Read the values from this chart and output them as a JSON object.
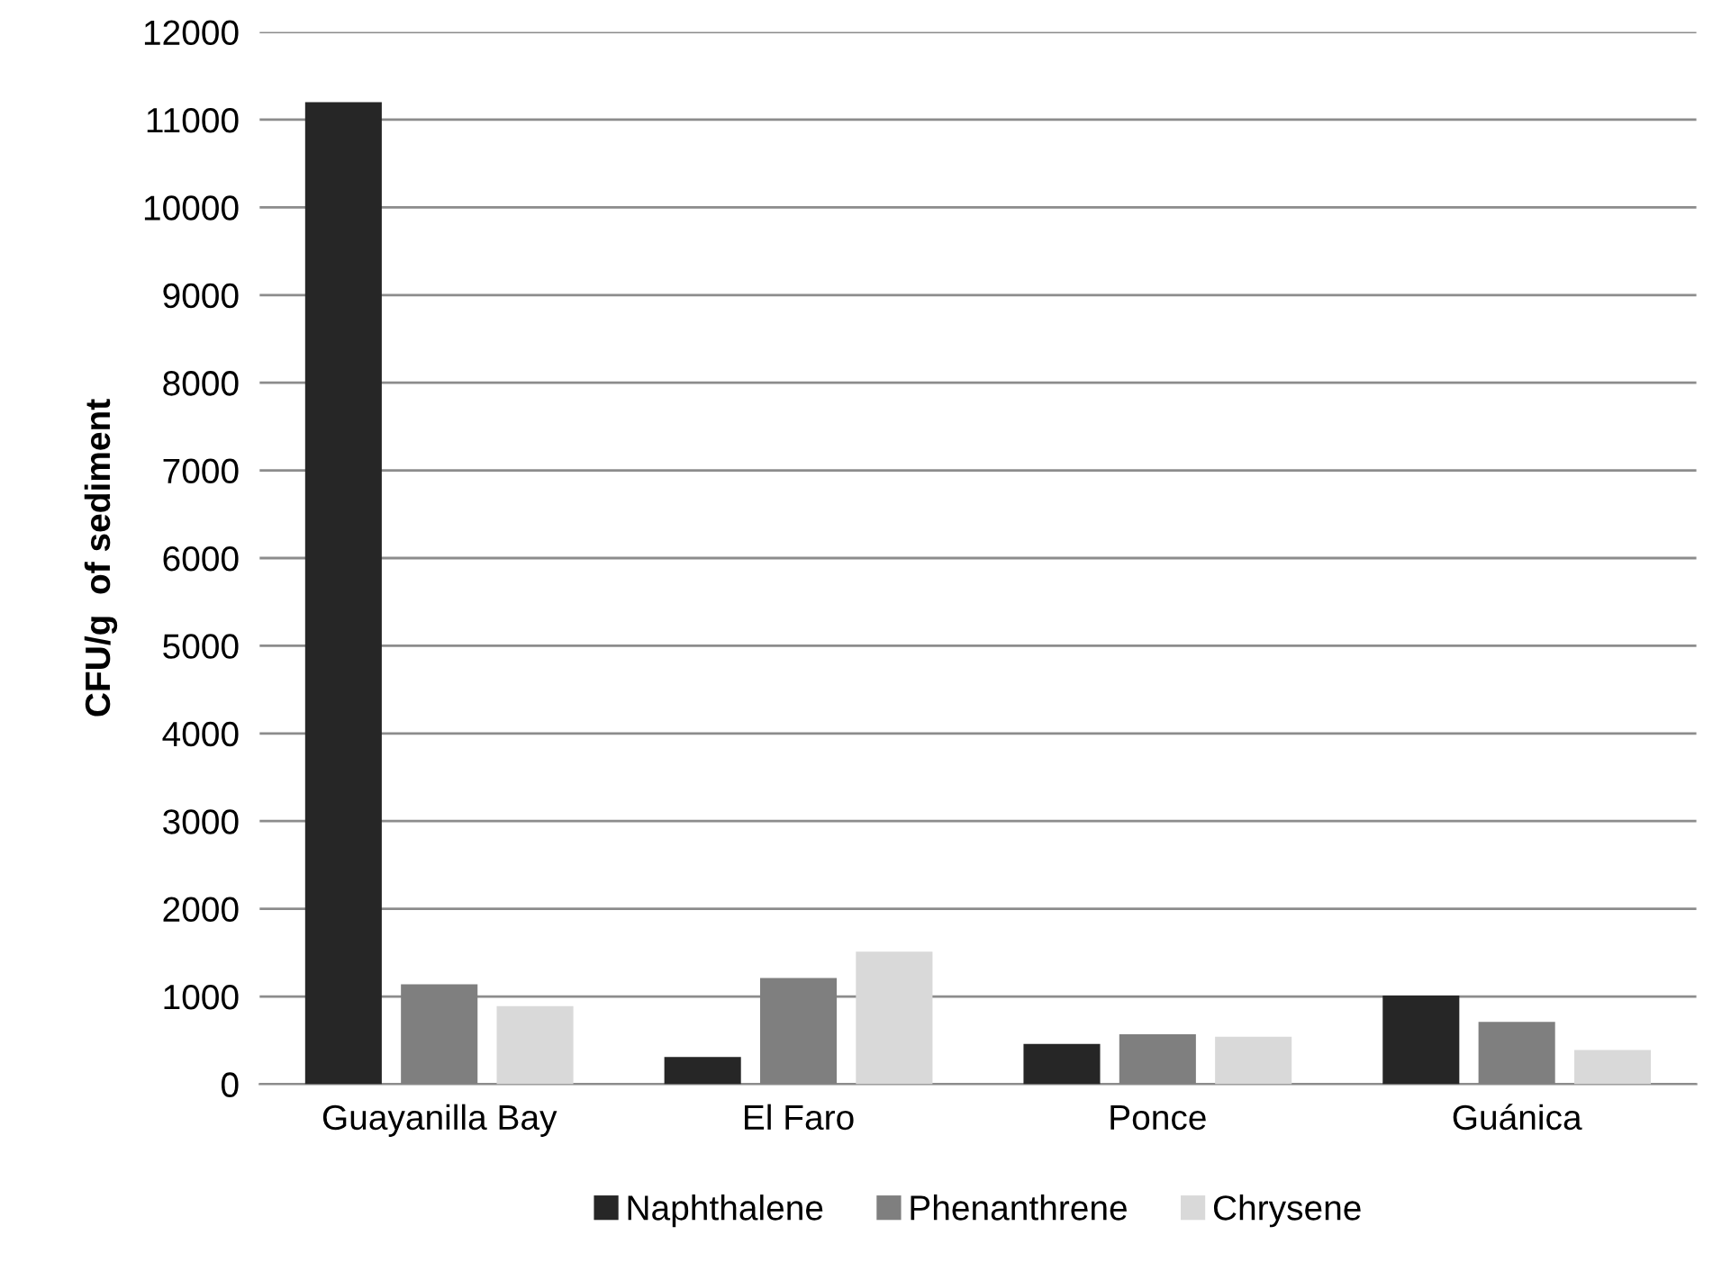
{
  "chart_data": {
    "type": "bar",
    "ylabel": "CFU/g  of sediment",
    "categories": [
      "Guayanilla Bay",
      "El Faro",
      "Ponce",
      "Guánica"
    ],
    "series": [
      {
        "name": "Naphthalene",
        "color": "#262626",
        "values": [
          11200,
          310,
          460,
          1010
        ]
      },
      {
        "name": "Phenanthrene",
        "color": "#7f7f7f",
        "values": [
          1140,
          1210,
          570,
          710
        ]
      },
      {
        "name": "Chrysene",
        "color": "#d9d9d9",
        "values": [
          890,
          1510,
          540,
          390
        ]
      }
    ],
    "ylim": [
      0,
      12000
    ],
    "yticks": [
      0,
      1000,
      2000,
      3000,
      4000,
      5000,
      6000,
      7000,
      8000,
      9000,
      10000,
      11000,
      12000
    ],
    "grid": "y",
    "legend": "bottom"
  }
}
